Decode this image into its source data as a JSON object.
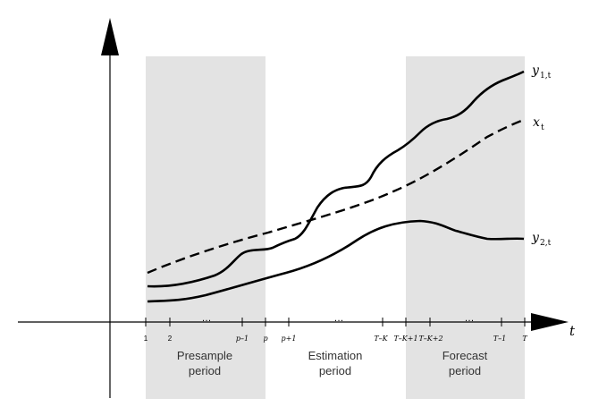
{
  "axis": {
    "x_label": "t"
  },
  "periods": {
    "presample": [
      "Presample",
      "period"
    ],
    "estimation": [
      "Estimation",
      "period"
    ],
    "forecast": [
      "Forecast",
      "period"
    ]
  },
  "ticks": {
    "t1": "1",
    "t2": "2",
    "dots1": "…",
    "pm1": "p–1",
    "p": "p",
    "pp1": "p+1",
    "dots2": "…",
    "tk": "T–K",
    "tk1": "T–K+1",
    "tk2": "T–K+2",
    "dots3": "…",
    "tm1": "T–1",
    "T": "T"
  },
  "series": {
    "y1": {
      "main": "y",
      "sub": "1,t"
    },
    "x": {
      "main": "x",
      "sub": "t"
    },
    "y2": {
      "main": "y",
      "sub": "2,t"
    }
  },
  "colors": {
    "shade": "#e3e3e3",
    "line": "#000000"
  }
}
